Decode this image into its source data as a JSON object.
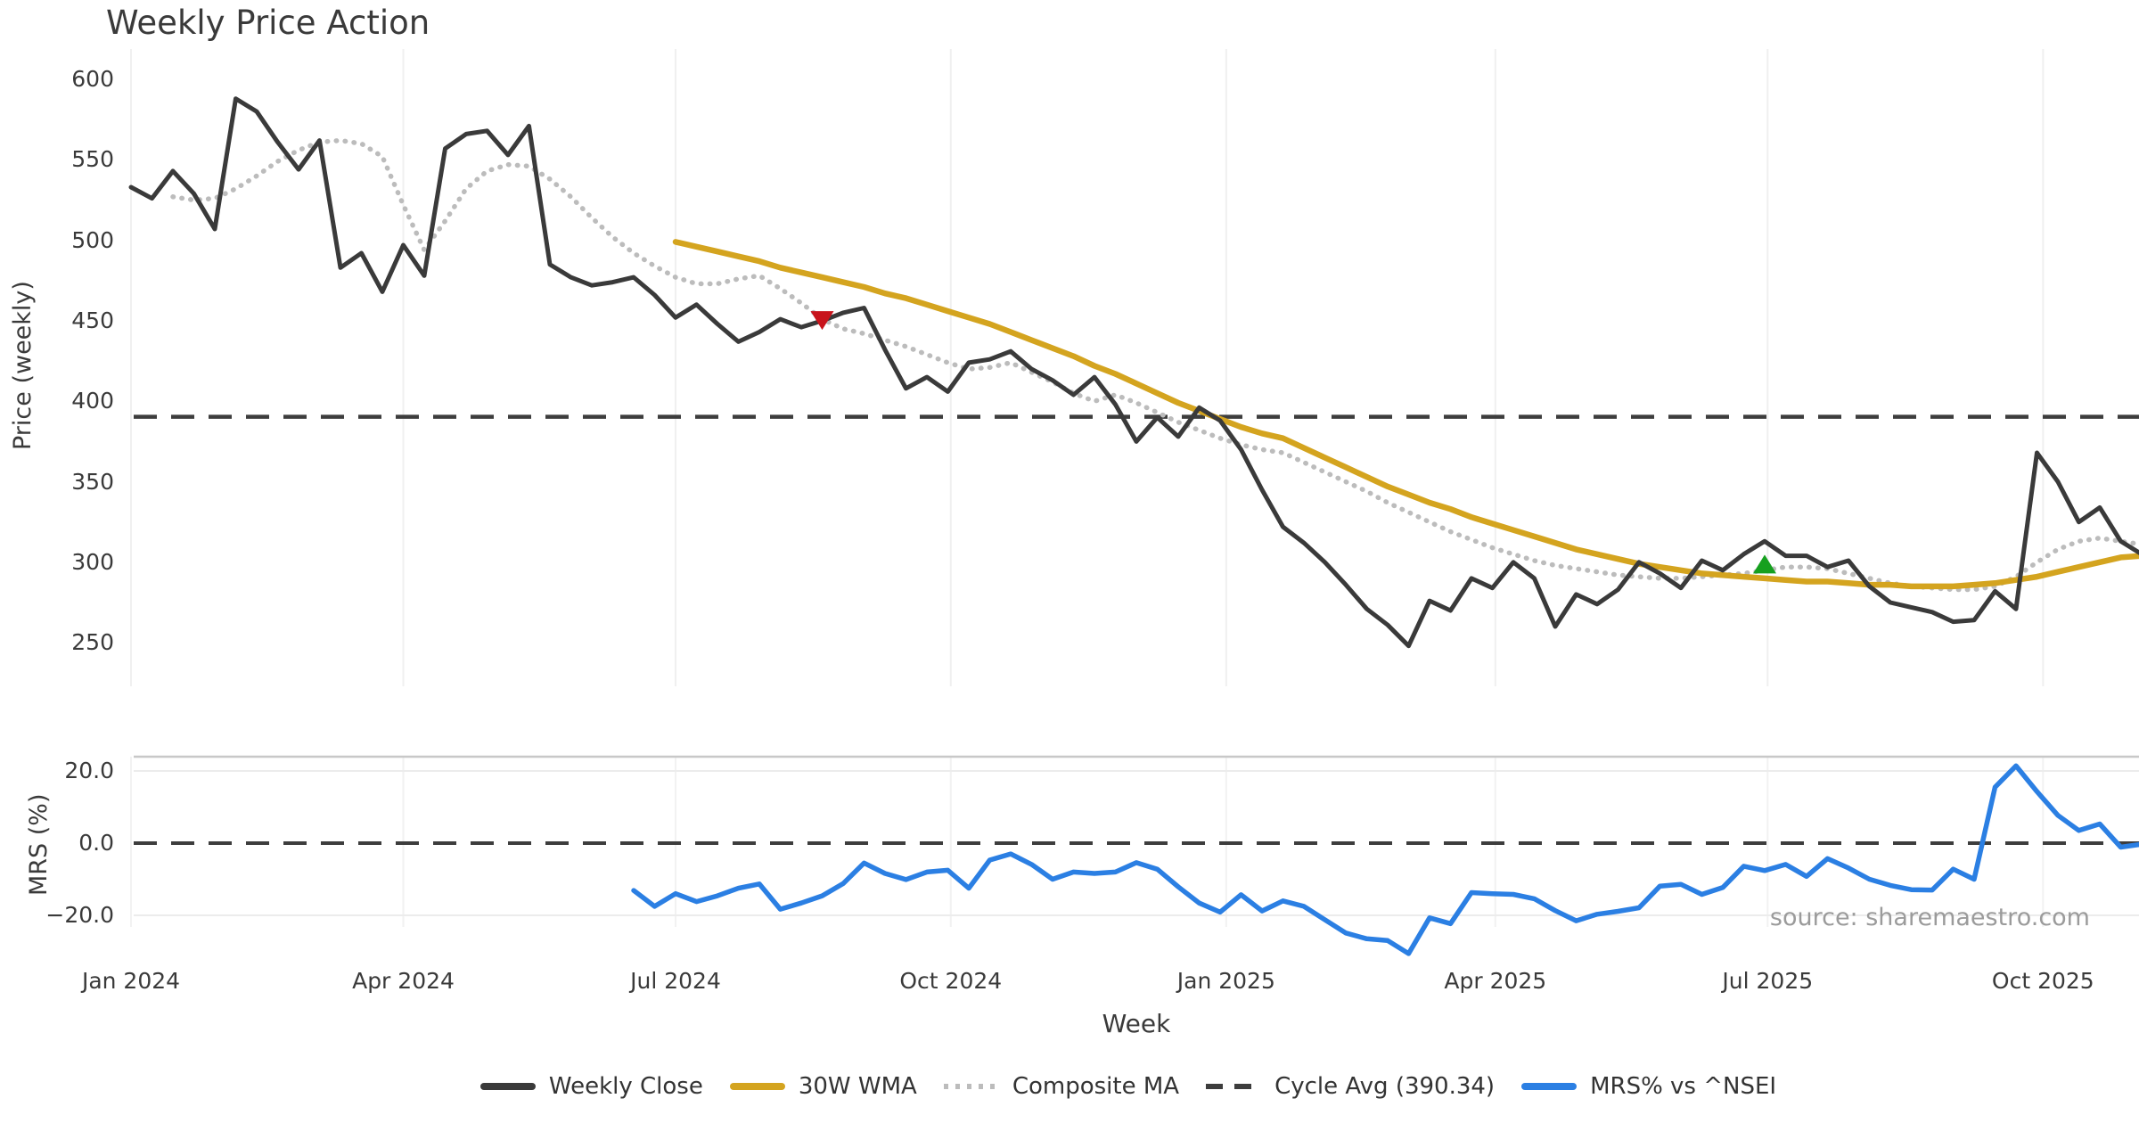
{
  "chart_data": {
    "type": "line",
    "title": "Weekly Price Action",
    "source_note": "source: sharemaestro.com",
    "x_axis": {
      "label": "Week",
      "start_date": "2024-01-01",
      "interval": "weekly",
      "num_points": 97,
      "tick_labels": [
        "Jan 2024",
        "Apr 2024",
        "Jul 2024",
        "Oct 2024",
        "Jan 2025",
        "Apr 2025",
        "Jul 2025",
        "Oct 2025"
      ],
      "tick_week_positions": [
        0,
        13,
        26,
        39.14,
        52.29,
        65.14,
        78.14,
        91.29
      ]
    },
    "panels": {
      "price": {
        "ylabel": "Price (weekly)",
        "yticks": [
          600,
          550,
          500,
          450,
          400,
          350,
          300,
          250
        ],
        "ylim": [
          225,
          615
        ],
        "grid": "vertical-only"
      },
      "mrs": {
        "ylabel": "MRS (%)",
        "ytick_labels": [
          "20.0",
          "0.0",
          "−20.0"
        ],
        "ytick_values": [
          20,
          0,
          -20
        ],
        "ylim": [
          -33,
          24
        ],
        "grid": "horizontal-and-vertical"
      }
    },
    "series": [
      {
        "name": "Weekly Close",
        "panel": "price",
        "color": "#3a3a3a",
        "line_style": "solid",
        "width": 5,
        "values": [
          533,
          526,
          543,
          529,
          507,
          588,
          580,
          561,
          544,
          562,
          483,
          492,
          468,
          497,
          478,
          557,
          566,
          568,
          553,
          571,
          485,
          477,
          472,
          474,
          477,
          466,
          452,
          460,
          448,
          437,
          443,
          451,
          446,
          450,
          455,
          458,
          432,
          408,
          415,
          406,
          424,
          426,
          431,
          420,
          413,
          404,
          415,
          398,
          375,
          390,
          378,
          396,
          388,
          370,
          345,
          322,
          312,
          300,
          286,
          271,
          261,
          248,
          276,
          270,
          290,
          284,
          300,
          290,
          260,
          280,
          274,
          283,
          300,
          293,
          284,
          301,
          295,
          305,
          313,
          304,
          304,
          297,
          301,
          285,
          275,
          272,
          269,
          263,
          264,
          282,
          271,
          368,
          350,
          325,
          334,
          313,
          305
        ]
      },
      {
        "name": "30W WMA",
        "panel": "price",
        "color": "#d4a41f",
        "line_style": "solid",
        "width": 6.5,
        "values": [
          null,
          null,
          null,
          null,
          null,
          null,
          null,
          null,
          null,
          null,
          null,
          null,
          null,
          null,
          null,
          null,
          null,
          null,
          null,
          null,
          null,
          null,
          null,
          null,
          null,
          null,
          499,
          496,
          493,
          490,
          487,
          483,
          480,
          477,
          474,
          471,
          467,
          464,
          460,
          456,
          452,
          448,
          443,
          438,
          433,
          428,
          422,
          417,
          411,
          405,
          399,
          394,
          389,
          384,
          380,
          377,
          371,
          365,
          359,
          353,
          347,
          342,
          337,
          333,
          328,
          324,
          320,
          316,
          312,
          308,
          305,
          302,
          299,
          297,
          295,
          293,
          292,
          291,
          290,
          289,
          288,
          288,
          287,
          286,
          286,
          285,
          285,
          285,
          286,
          287,
          289,
          291,
          294,
          297,
          300,
          303,
          304
        ]
      },
      {
        "name": "Composite MA",
        "panel": "price",
        "color": "#bcbcbc",
        "line_style": "dotted",
        "width": 5.5,
        "values": [
          null,
          null,
          527,
          525,
          526,
          532,
          540,
          549,
          556,
          561,
          562,
          560,
          552,
          522,
          494,
          512,
          532,
          543,
          547,
          546,
          538,
          527,
          514,
          502,
          492,
          484,
          477,
          473,
          473,
          476,
          478,
          470,
          461,
          451,
          445,
          442,
          438,
          434,
          429,
          424,
          420,
          421,
          424,
          418,
          412,
          405,
          400,
          404,
          399,
          393,
          387,
          382,
          377,
          373,
          370,
          368,
          362,
          356,
          350,
          344,
          337,
          331,
          325,
          319,
          314,
          309,
          305,
          301,
          298,
          296,
          294,
          292,
          291,
          290,
          290,
          291,
          292,
          293,
          295,
          297,
          297,
          296,
          293,
          290,
          287,
          285,
          284,
          283,
          283,
          285,
          291,
          300,
          308,
          313,
          315,
          313,
          311
        ]
      },
      {
        "name": "Cycle Avg (390.34)",
        "panel": "price",
        "color": "#3d3d3d",
        "line_style": "dashed",
        "width": 4.5,
        "constant_value": 390.34
      },
      {
        "name": "MRS% vs ^NSEI",
        "panel": "mrs",
        "color": "#2b7fe3",
        "line_style": "solid",
        "width": 5.5,
        "values": [
          null,
          null,
          null,
          null,
          null,
          null,
          null,
          null,
          null,
          null,
          null,
          null,
          null,
          null,
          null,
          null,
          null,
          null,
          null,
          null,
          null,
          null,
          null,
          null,
          -13.1,
          -17.5,
          -14.0,
          -16.2,
          -14.6,
          -12.5,
          -11.3,
          -18.3,
          -16.6,
          -14.6,
          -11.2,
          -5.5,
          -8.4,
          -10.1,
          -8.0,
          -7.5,
          -12.5,
          -4.7,
          -3.0,
          -5.9,
          -10.0,
          -8.0,
          -8.4,
          -8.0,
          -5.4,
          -7.2,
          -12.1,
          -16.6,
          -19.1,
          -14.3,
          -18.8,
          -16.0,
          -17.5,
          -21.2,
          -24.9,
          -26.5,
          -27.0,
          -30.6,
          -20.7,
          -22.3,
          -13.7,
          -14.0,
          -14.2,
          -15.4,
          -18.7,
          -21.5,
          -19.7,
          -18.9,
          -17.9,
          -11.9,
          -11.4,
          -14.2,
          -12.3,
          -6.4,
          -7.6,
          -5.9,
          -9.2,
          -4.3,
          -6.9,
          -10.0,
          -11.7,
          -12.9,
          -13.0,
          -7.2,
          -10.0,
          15.5,
          21.4,
          14.3,
          7.7,
          3.5,
          5.3,
          -1.1,
          -0.3
        ]
      }
    ],
    "markers": [
      {
        "type": "sell-signal",
        "shape": "triangle-down",
        "color": "#c8141c",
        "week_index": 33,
        "date": "2024-08-19",
        "price": 451
      },
      {
        "type": "buy-signal",
        "shape": "triangle-up",
        "color": "#16a01f",
        "week_index": 78,
        "date": "2025-06-30",
        "price": 298
      }
    ],
    "legend": {
      "position": "bottom-center",
      "entries": [
        "Weekly Close",
        "30W WMA",
        "Composite MA",
        "Cycle Avg (390.34)",
        "MRS% vs ^NSEI"
      ]
    }
  }
}
